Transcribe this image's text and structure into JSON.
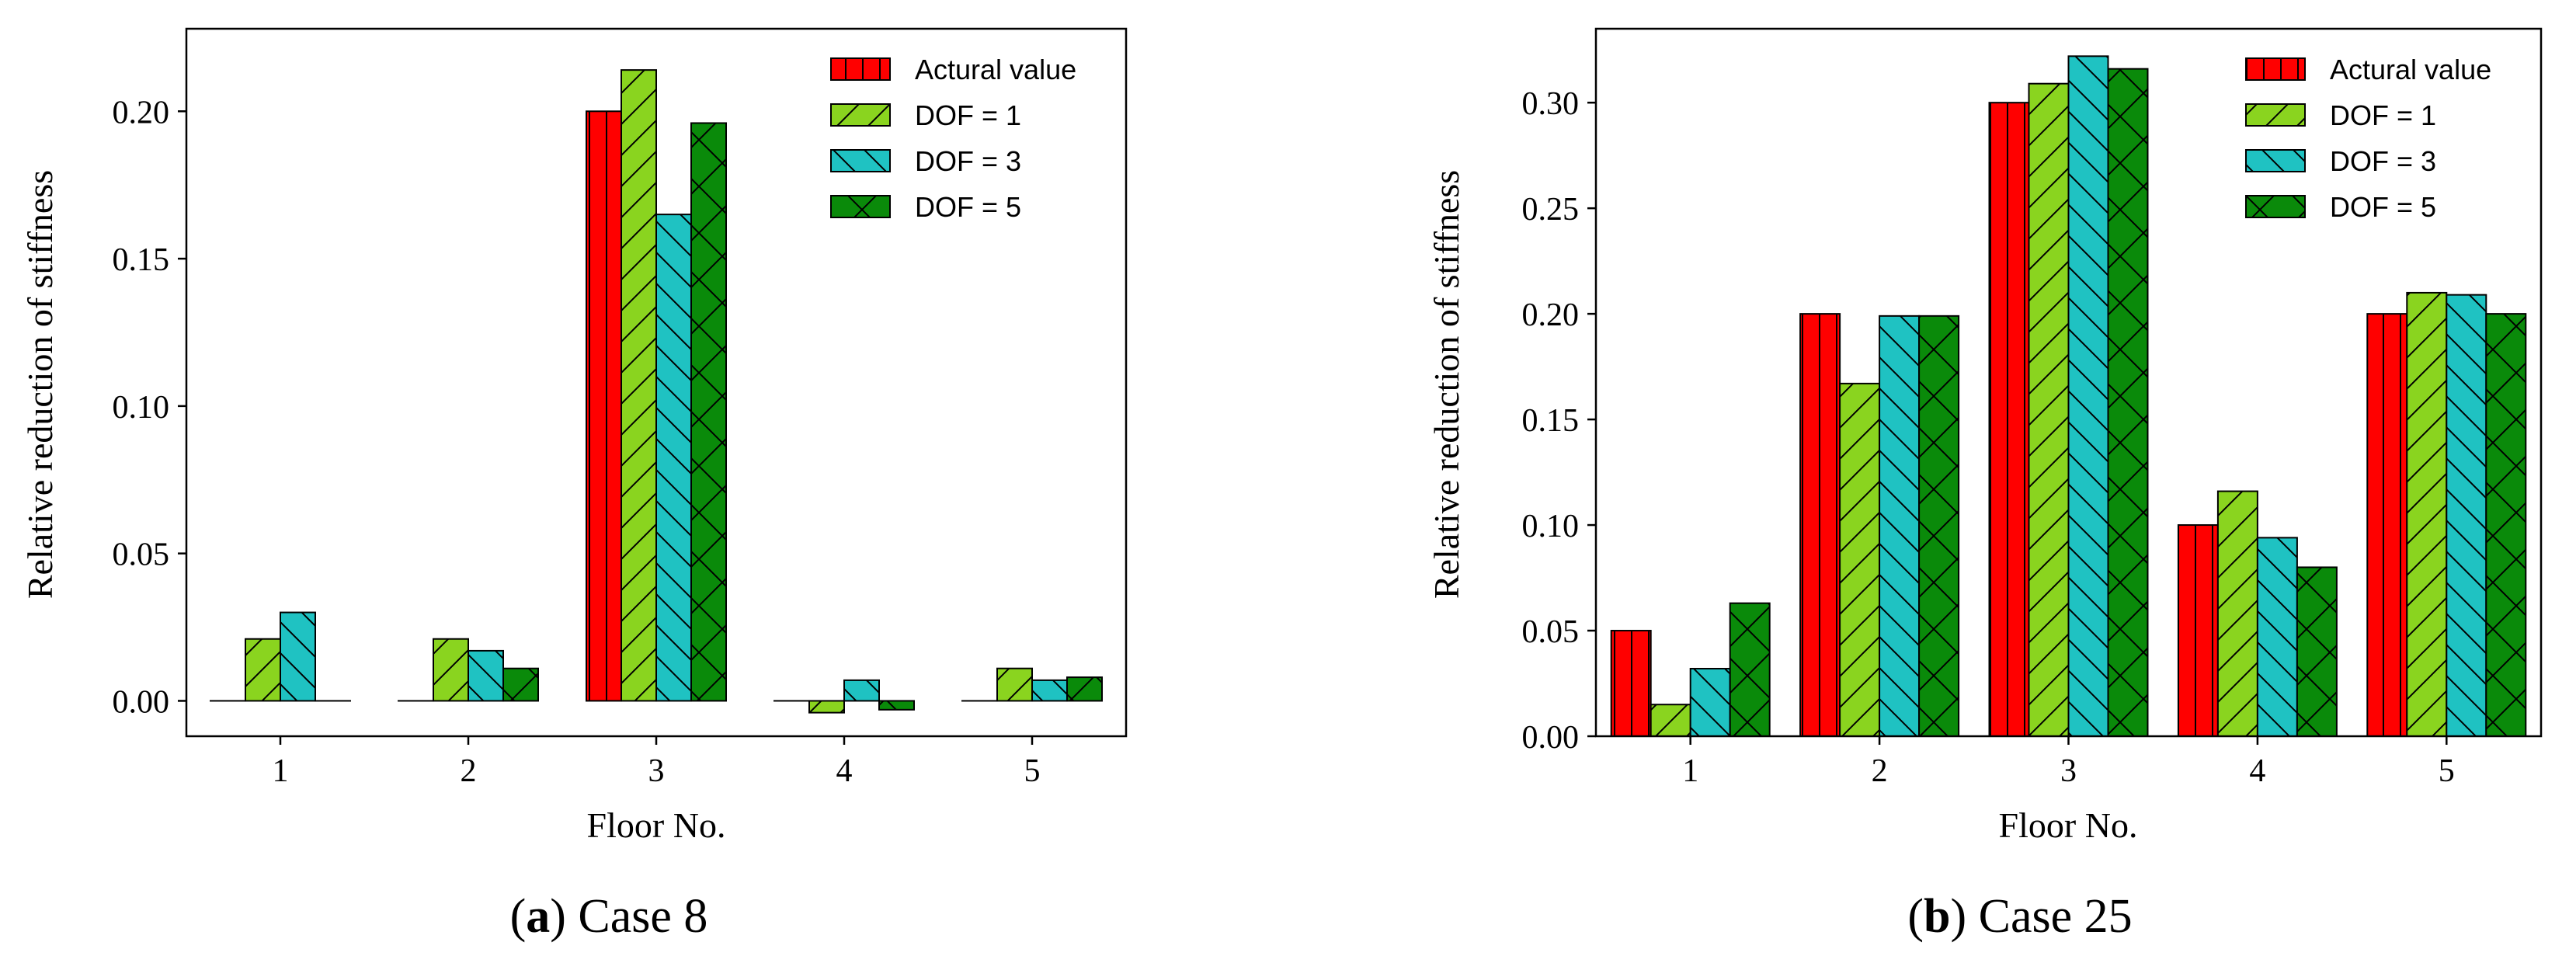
{
  "chart_data": [
    {
      "type": "bar",
      "panel_letter": "a",
      "caption": "Case 8",
      "xlabel": "Floor No.",
      "ylabel": "Relative reduction of stiffness",
      "categories": [
        "1",
        "2",
        "3",
        "4",
        "5"
      ],
      "ylim": [
        -0.012,
        0.228
      ],
      "yticks": [
        "0.00",
        "0.05",
        "0.10",
        "0.15",
        "0.20"
      ],
      "legend_position": "top-right",
      "series": [
        {
          "name": "Actural value",
          "color": "#ff0000",
          "hatch": "vertical",
          "values": [
            0.0,
            0.0,
            0.2,
            0.0,
            0.0
          ]
        },
        {
          "name": "DOF = 1",
          "color": "#8ad41f",
          "hatch": "forward-diagonal",
          "values": [
            0.021,
            0.021,
            0.214,
            -0.004,
            0.011
          ]
        },
        {
          "name": "DOF = 3",
          "color": "#1fc2c2",
          "hatch": "back-diagonal",
          "values": [
            0.03,
            0.017,
            0.165,
            0.007,
            0.007
          ]
        },
        {
          "name": "DOF = 5",
          "color": "#0a8a0a",
          "hatch": "cross",
          "values": [
            0.0,
            0.011,
            0.196,
            -0.003,
            0.008
          ]
        }
      ]
    },
    {
      "type": "bar",
      "panel_letter": "b",
      "caption": "Case 25",
      "xlabel": "Floor No.",
      "ylabel": "Relative reduction of stiffness",
      "categories": [
        "1",
        "2",
        "3",
        "4",
        "5"
      ],
      "ylim": [
        0.0,
        0.335
      ],
      "yticks": [
        "0.00",
        "0.05",
        "0.10",
        "0.15",
        "0.20",
        "0.25",
        "0.30"
      ],
      "legend_position": "top-right",
      "series": [
        {
          "name": "Actural value",
          "color": "#ff0000",
          "hatch": "vertical",
          "values": [
            0.05,
            0.2,
            0.3,
            0.1,
            0.2
          ]
        },
        {
          "name": "DOF = 1",
          "color": "#8ad41f",
          "hatch": "forward-diagonal",
          "values": [
            0.015,
            0.167,
            0.309,
            0.116,
            0.21
          ]
        },
        {
          "name": "DOF = 3",
          "color": "#1fc2c2",
          "hatch": "back-diagonal",
          "values": [
            0.032,
            0.199,
            0.322,
            0.094,
            0.209
          ]
        },
        {
          "name": "DOF = 5",
          "color": "#0a8a0a",
          "hatch": "cross",
          "values": [
            0.063,
            0.199,
            0.316,
            0.08,
            0.2
          ]
        }
      ]
    }
  ]
}
